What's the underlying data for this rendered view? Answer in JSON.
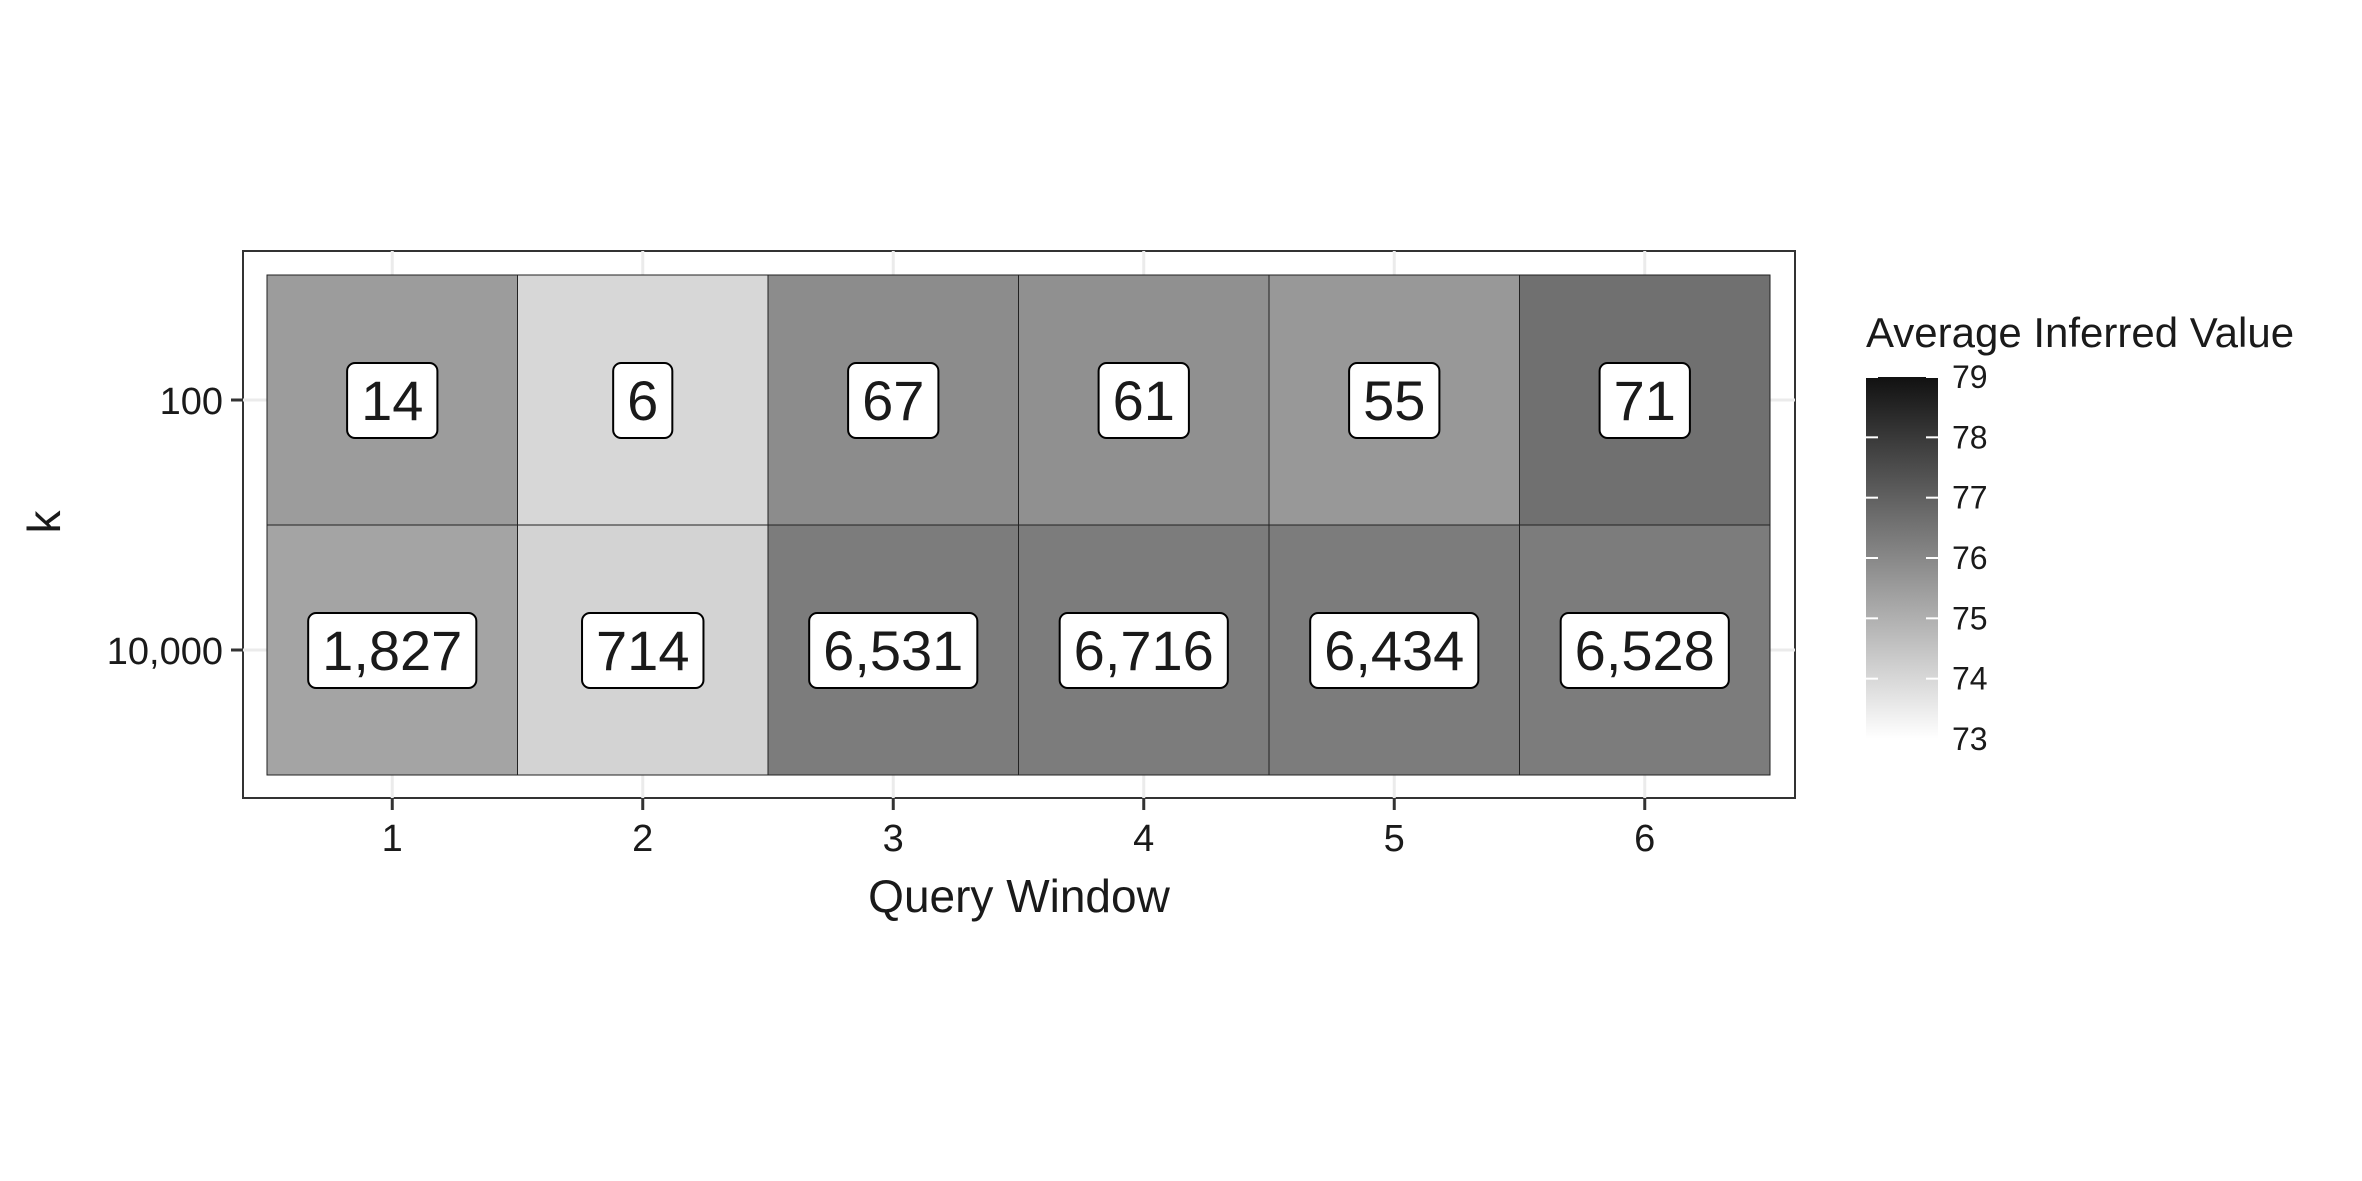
{
  "chart_data": {
    "type": "heatmap",
    "xlabel": "Query Window",
    "ylabel": "k",
    "x_categories": [
      "1",
      "2",
      "3",
      "4",
      "5",
      "6"
    ],
    "y_categories": [
      "100",
      "10,000"
    ],
    "labels": [
      [
        "14",
        "6",
        "67",
        "61",
        "55",
        "71"
      ],
      [
        "1,827",
        "714",
        "6,531",
        "6,716",
        "6,434",
        "6,528"
      ]
    ],
    "values": [
      [
        75.5,
        74.0,
        75.9,
        75.8,
        75.6,
        76.6
      ],
      [
        75.3,
        74.1,
        76.3,
        76.3,
        76.3,
        76.3
      ]
    ],
    "legend": {
      "title": "Average Inferred Value",
      "ticks": [
        "73",
        "74",
        "75",
        "76",
        "77",
        "78",
        "79"
      ],
      "min": 73,
      "max": 79
    },
    "grid": true,
    "theme": "grayscale",
    "legend_position": "right"
  }
}
